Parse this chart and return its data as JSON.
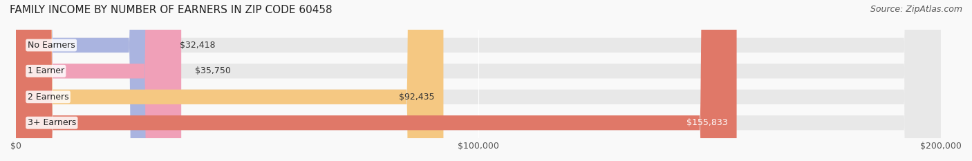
{
  "title": "FAMILY INCOME BY NUMBER OF EARNERS IN ZIP CODE 60458",
  "source": "Source: ZipAtlas.com",
  "categories": [
    "No Earners",
    "1 Earner",
    "2 Earners",
    "3+ Earners"
  ],
  "values": [
    32418,
    35750,
    92435,
    155833
  ],
  "bar_colors": [
    "#aab4e0",
    "#f0a0b8",
    "#f5c882",
    "#e07868"
  ],
  "bar_bg_color": "#f0f0f0",
  "label_colors": [
    "#333333",
    "#333333",
    "#333333",
    "#ffffff"
  ],
  "label_texts": [
    "$32,418",
    "$35,750",
    "$92,435",
    "$155,833"
  ],
  "x_ticks": [
    0,
    100000,
    200000
  ],
  "x_tick_labels": [
    "$0",
    "$100,000",
    "$200,000"
  ],
  "xlim": [
    0,
    200000
  ],
  "background_color": "#f9f9f9",
  "bar_height": 0.55,
  "title_fontsize": 11,
  "source_fontsize": 9,
  "label_fontsize": 9,
  "tick_fontsize": 9,
  "category_fontsize": 9
}
